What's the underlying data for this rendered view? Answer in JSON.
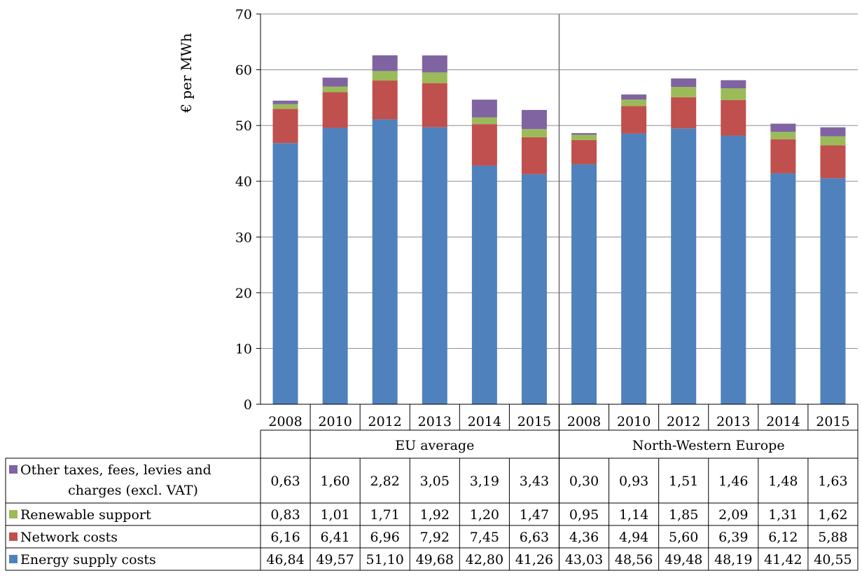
{
  "chart_data": {
    "type": "bar",
    "stacked": true,
    "ylabel": "€ per MWh",
    "ylim": [
      0,
      70
    ],
    "yticks": [
      "0",
      "10",
      "20",
      "30",
      "40",
      "50",
      "60",
      "70"
    ],
    "grid": true,
    "legend": "table-left",
    "categories": [
      "2008",
      "2010",
      "2012",
      "2013",
      "2014",
      "2015",
      "2008",
      "2010",
      "2012",
      "2013",
      "2014",
      "2015"
    ],
    "groups": [
      {
        "label": "EU average",
        "start": 1,
        "end": 6
      },
      {
        "label": "North-Western Europe",
        "start": 6,
        "end": 12
      }
    ],
    "series": [
      {
        "name": "Energy supply costs",
        "color": "#4F81BD",
        "values": [
          46.84,
          49.57,
          51.1,
          49.68,
          42.8,
          41.26,
          43.03,
          48.56,
          49.48,
          48.19,
          41.42,
          40.55
        ],
        "labels": [
          "46,84",
          "49,57",
          "51,10",
          "49,68",
          "42,80",
          "41,26",
          "43,03",
          "48,56",
          "49,48",
          "48,19",
          "41,42",
          "40,55"
        ]
      },
      {
        "name": "Network costs",
        "color": "#C0504D",
        "values": [
          6.16,
          6.41,
          6.96,
          7.92,
          7.45,
          6.63,
          4.36,
          4.94,
          5.6,
          6.39,
          6.12,
          5.88
        ],
        "labels": [
          "6,16",
          "6,41",
          "6,96",
          "7,92",
          "7,45",
          "6,63",
          "4,36",
          "4,94",
          "5,60",
          "6,39",
          "6,12",
          "5,88"
        ]
      },
      {
        "name": "Renewable support",
        "color": "#9BBB59",
        "values": [
          0.83,
          1.01,
          1.71,
          1.92,
          1.2,
          1.47,
          0.95,
          1.14,
          1.85,
          2.09,
          1.31,
          1.62
        ],
        "labels": [
          "0,83",
          "1,01",
          "1,71",
          "1,92",
          "1,20",
          "1,47",
          "0,95",
          "1,14",
          "1,85",
          "2,09",
          "1,31",
          "1,62"
        ]
      },
      {
        "name": "Other taxes, fees, levies and charges (excl. VAT)",
        "legend_lines": [
          "Other taxes, fees, levies and",
          "charges (excl. VAT)"
        ],
        "color": "#8064A2",
        "values": [
          0.63,
          1.6,
          2.82,
          3.05,
          3.19,
          3.43,
          0.3,
          0.93,
          1.51,
          1.46,
          1.48,
          1.63
        ],
        "labels": [
          "0,63",
          "1,60",
          "2,82",
          "3,05",
          "3,19",
          "3,43",
          "0,30",
          "0,93",
          "1,51",
          "1,46",
          "1,48",
          "1,63"
        ]
      }
    ]
  }
}
